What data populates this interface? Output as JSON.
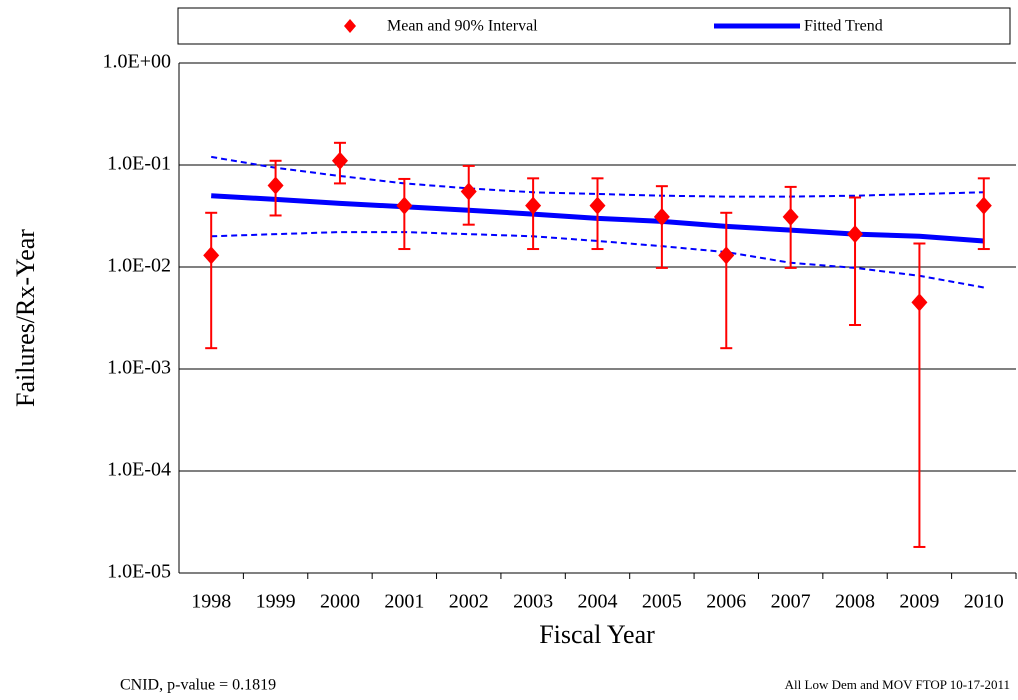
{
  "chart_data": {
    "type": "errorbar",
    "x_label": "Fiscal Year",
    "y_label": "Failures/Rx-Year",
    "categories": [
      "1998",
      "1999",
      "2000",
      "2001",
      "2002",
      "2003",
      "2004",
      "2005",
      "2006",
      "2007",
      "2008",
      "2009",
      "2010"
    ],
    "series": [
      {
        "name": "Mean and 90% Interval",
        "color": "#ff0000",
        "values": [
          0.013,
          0.063,
          0.11,
          0.04,
          0.055,
          0.04,
          0.04,
          0.031,
          0.013,
          0.031,
          0.021,
          0.0045,
          0.04
        ],
        "lower": [
          0.0016,
          0.032,
          0.066,
          0.015,
          0.026,
          0.015,
          0.015,
          0.0098,
          0.0016,
          0.0098,
          0.0027,
          1.8e-05,
          0.015
        ],
        "upper": [
          0.034,
          0.11,
          0.165,
          0.073,
          0.098,
          0.074,
          0.074,
          0.062,
          0.034,
          0.061,
          0.048,
          0.017,
          0.074
        ]
      },
      {
        "name": "Fitted Trend",
        "color": "#0000ff",
        "values": [
          0.05,
          0.046,
          0.042,
          0.039,
          0.036,
          0.033,
          0.03,
          0.028,
          0.025,
          0.023,
          0.021,
          0.02,
          0.018
        ],
        "lower": [
          0.02,
          0.021,
          0.022,
          0.022,
          0.021,
          0.02,
          0.018,
          0.016,
          0.014,
          0.011,
          0.0098,
          0.0082,
          0.0063
        ],
        "upper": [
          0.12,
          0.094,
          0.078,
          0.066,
          0.059,
          0.054,
          0.052,
          0.05,
          0.049,
          0.049,
          0.05,
          0.052,
          0.054
        ]
      }
    ],
    "ylim": [
      1e-05,
      1
    ],
    "yticks": [
      {
        "value": 1e-05,
        "label": "1.0E-05"
      },
      {
        "value": 0.0001,
        "label": "1.0E-04"
      },
      {
        "value": 0.001,
        "label": "1.0E-03"
      },
      {
        "value": 0.01,
        "label": "1.0E-02"
      },
      {
        "value": 0.1,
        "label": "1.0E-01"
      },
      {
        "value": 1,
        "label": "1.0E+00"
      }
    ],
    "log_scale": true,
    "grid": true,
    "legend": "top",
    "annotations": [
      "CNID, p-value = 0.1819",
      "All Low Dem and MOV FTOP 10-17-2011"
    ]
  }
}
